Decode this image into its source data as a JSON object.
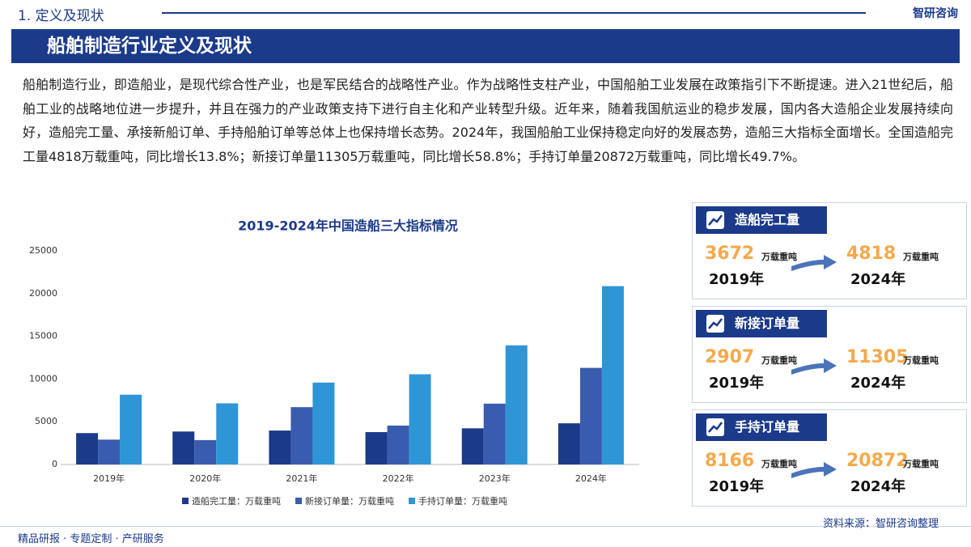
{
  "header": {
    "section": "1. 定义及现状",
    "brand": "智研咨询"
  },
  "banner": {
    "title": "船舶制造行业定义及现状"
  },
  "paragraph": "船舶制造行业，即造船业，是现代综合性产业，也是军民结合的战略性产业。作为战略性支柱产业，中国船舶工业发展在政策指引下不断提速。进入21世纪后，船舶工业的战略地位进一步提升，并且在强力的产业政策支持下进行自主化和产业转型升级。近年来，随着我国航运业的稳步发展，国内各大造船企业发展持续向好，造船完工量、承接新船订单、手持船舶订单等总体上也保持增长态势。2024年，我国船舶工业保持稳定向好的发展态势，造船三大指标全面增长。全国造船完工量4818万载重吨，同比增长13.8%；新接订单量11305万载重吨，同比增长58.8%；手持订单量20872万载重吨，同比增长49.7%。",
  "chart_data": {
    "type": "bar",
    "title": "2019-2024年中国造船三大指标情况",
    "categories": [
      "2019年",
      "2020年",
      "2021年",
      "2022年",
      "2023年",
      "2024年"
    ],
    "series": [
      {
        "name": "造船完工量：万载重吨",
        "color": "#1b3a8a",
        "values": [
          3672,
          3853,
          3970,
          3786,
          4232,
          4818
        ]
      },
      {
        "name": "新接订单量：万载重吨",
        "color": "#3a5cae",
        "values": [
          2907,
          2853,
          6707,
          4552,
          7120,
          11305
        ]
      },
      {
        "name": "手持订单量：万载重吨",
        "color": "#2e96d6",
        "values": [
          8166,
          7155,
          9584,
          10557,
          13939,
          20872
        ]
      }
    ],
    "ylim": [
      0,
      25000
    ],
    "yticks": [
      0,
      5000,
      10000,
      15000,
      20000,
      25000
    ],
    "grid": false,
    "legend": "bottom"
  },
  "cards": [
    {
      "title": "造船完工量",
      "from": {
        "value": "3672",
        "unit": "万载重吨",
        "year": "2019年"
      },
      "to": {
        "value": "4818",
        "unit": "万载重吨",
        "year": "2024年"
      }
    },
    {
      "title": "新接订单量",
      "from": {
        "value": "2907",
        "unit": "万载重吨",
        "year": "2019年"
      },
      "to": {
        "value": "11305",
        "unit": "万载重吨",
        "year": "2024年"
      }
    },
    {
      "title": "手持订单量",
      "from": {
        "value": "8166",
        "unit": "万载重吨",
        "year": "2019年"
      },
      "to": {
        "value": "20872",
        "unit": "万载重吨",
        "year": "2024年"
      }
    }
  ],
  "source": "资料来源：智研咨询整理",
  "footer": "精品研报 · 专题定制 · 产研服务"
}
